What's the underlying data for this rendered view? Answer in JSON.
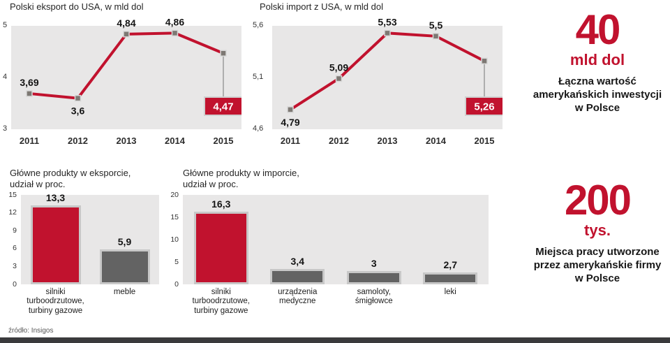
{
  "colors": {
    "accent": "#c1122e",
    "panel": "#e8e7e7",
    "bar_border": "#c8c8c8",
    "marker": "#7d7873",
    "footer_bar": "#3a3a3c"
  },
  "source_note": "źródło: Insigos",
  "stats": [
    {
      "number": "40",
      "unit": "mld dol",
      "description": "Łączna wartość amerykańskich inwestycji w Polsce"
    },
    {
      "number": "200",
      "unit": "tys.",
      "description": "Miejsca pracy utworzone przez amerykańskie firmy w Polsce"
    }
  ],
  "chart_data": [
    {
      "type": "line",
      "title": "Polski eksport do USA, w mld dol",
      "categories": [
        "2011",
        "2012",
        "2013",
        "2014",
        "2015"
      ],
      "values": [
        3.69,
        3.6,
        4.84,
        4.86,
        4.47
      ],
      "value_labels": [
        "3,69",
        "3,6",
        "4,84",
        "4,86",
        "4,47"
      ],
      "label_positions": [
        "above",
        "below",
        "above",
        "above",
        "box"
      ],
      "ylim": [
        3,
        5
      ],
      "yticks": [
        "5",
        "4",
        "3"
      ],
      "highlight_index": 4,
      "grid": false,
      "legend": false
    },
    {
      "type": "line",
      "title": "Polski import z USA, w mld dol",
      "categories": [
        "2011",
        "2012",
        "2013",
        "2014",
        "2015"
      ],
      "values": [
        4.79,
        5.09,
        5.53,
        5.5,
        5.26
      ],
      "value_labels": [
        "4,79",
        "5,09",
        "5,53",
        "5,5",
        "5,26"
      ],
      "label_positions": [
        "below",
        "above",
        "above",
        "above",
        "box"
      ],
      "ylim": [
        4.6,
        5.6
      ],
      "yticks": [
        "5,6",
        "5,1",
        "4,6"
      ],
      "highlight_index": 4,
      "grid": false,
      "legend": false
    },
    {
      "type": "bar",
      "title": "Główne produkty w eksporcie,\nudział w proc.",
      "categories": [
        "silniki\nturboodrzutowe,\nturbiny gazowe",
        "meble"
      ],
      "values": [
        13.3,
        5.9
      ],
      "value_labels": [
        "13,3",
        "5,9"
      ],
      "bar_colors": [
        "#c1122e",
        "#636363"
      ],
      "ylim": [
        0,
        15
      ],
      "yticks": [
        "15",
        "12",
        "9",
        "6",
        "3",
        "0"
      ],
      "grid": false,
      "legend": false
    },
    {
      "type": "bar",
      "title": "Główne produkty w imporcie,\nudział w proc.",
      "categories": [
        "silniki\nturboodrzutowe,\nturbiny gazowe",
        "urządzenia\nmedyczne",
        "samoloty,\nśmigłowce",
        "leki"
      ],
      "values": [
        16.3,
        3.4,
        3,
        2.7
      ],
      "value_labels": [
        "16,3",
        "3,4",
        "3",
        "2,7"
      ],
      "bar_colors": [
        "#c1122e",
        "#636363",
        "#636363",
        "#636363"
      ],
      "ylim": [
        0,
        20
      ],
      "yticks": [
        "20",
        "15",
        "10",
        "5",
        "0"
      ],
      "grid": false,
      "legend": false
    }
  ]
}
